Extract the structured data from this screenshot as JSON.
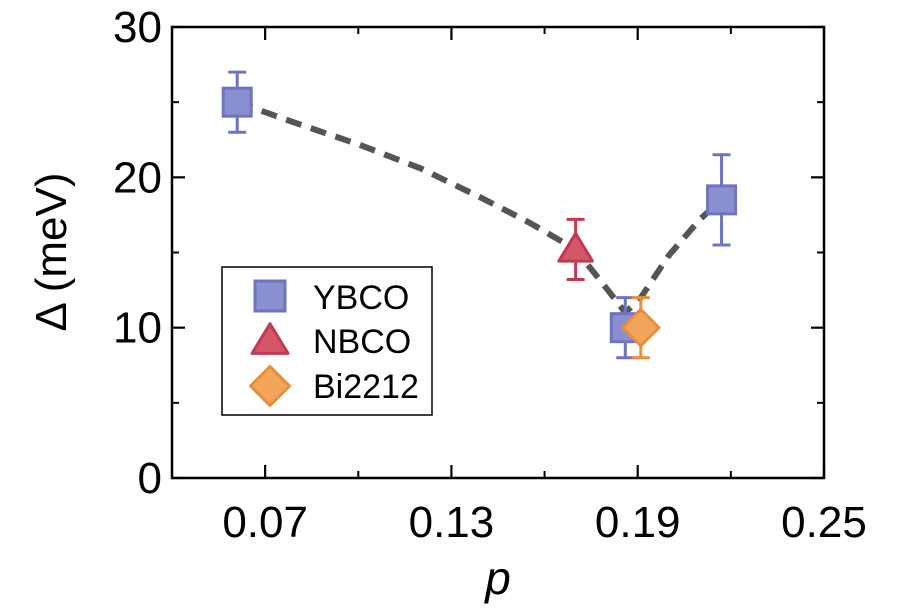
{
  "chart_data": {
    "type": "scatter",
    "title": "",
    "xlabel": "p",
    "ylabel": "Δ (meV)",
    "xlim": [
      0.04,
      0.25
    ],
    "ylim": [
      0,
      30
    ],
    "x_ticks": [
      0.07,
      0.13,
      0.19,
      0.25
    ],
    "x_tick_labels": [
      "0.07",
      "0.13",
      "0.19",
      "0.25"
    ],
    "y_ticks": [
      0,
      10,
      20,
      30
    ],
    "y_tick_labels": [
      "0",
      "10",
      "20",
      "30"
    ],
    "grid": false,
    "legend_position": "bottom-left",
    "series": [
      {
        "name": "YBCO",
        "marker": "square",
        "color": "#8A8FCF",
        "stroke": "#6F74BF",
        "points": [
          {
            "x": 0.061,
            "y": 25,
            "err": 2
          },
          {
            "x": 0.186,
            "y": 10,
            "err": 2
          },
          {
            "x": 0.217,
            "y": 18.5,
            "err": 3
          }
        ]
      },
      {
        "name": "NBCO",
        "marker": "triangle",
        "color": "#D4566A",
        "stroke": "#C23A52",
        "points": [
          {
            "x": 0.17,
            "y": 15.2,
            "err": 2
          }
        ]
      },
      {
        "name": "Bi2212",
        "marker": "diamond",
        "color": "#F2A55A",
        "stroke": "#E88F3C",
        "points": [
          {
            "x": 0.191,
            "y": 10,
            "err": 2
          }
        ]
      }
    ],
    "trend_line": {
      "style": "dashed",
      "color": "#555555",
      "points": [
        [
          0.061,
          25
        ],
        [
          0.08,
          23.6
        ],
        [
          0.1,
          22.2
        ],
        [
          0.12,
          20.6
        ],
        [
          0.14,
          18.6
        ],
        [
          0.155,
          17.0
        ],
        [
          0.17,
          15.2
        ],
        [
          0.18,
          12.6
        ],
        [
          0.186,
          11.0
        ],
        [
          0.191,
          12.0
        ],
        [
          0.2,
          14.8
        ],
        [
          0.21,
          17.2
        ],
        [
          0.217,
          18.5
        ]
      ]
    }
  }
}
